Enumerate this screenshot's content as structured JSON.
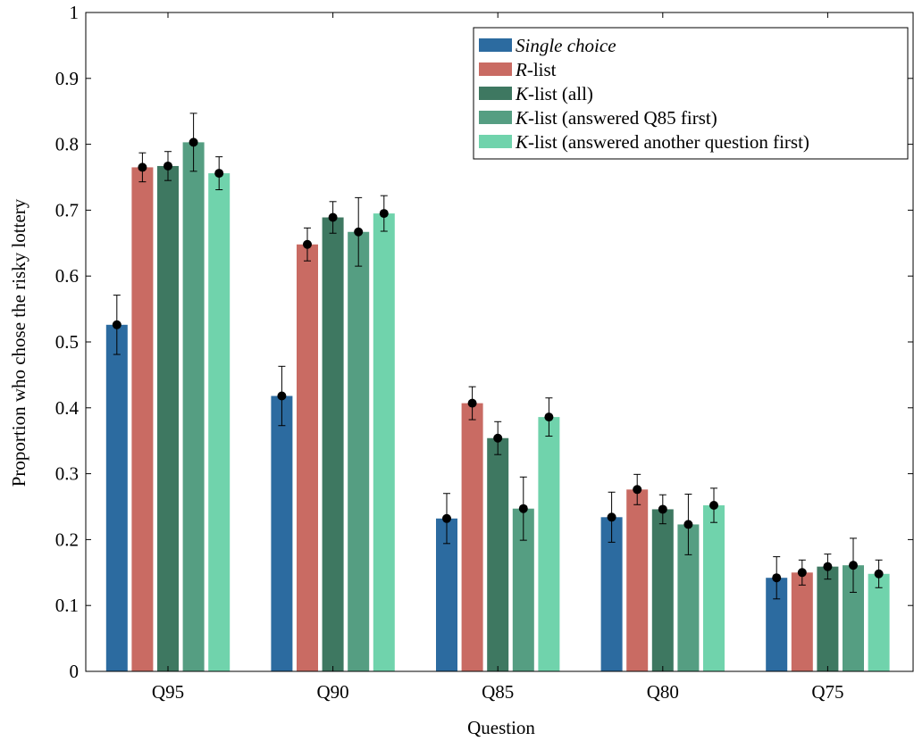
{
  "chart_data": {
    "type": "bar",
    "title": "",
    "xlabel": "Question",
    "ylabel": "Proportion who chose the risky lottery",
    "ylim": [
      0,
      1
    ],
    "yticks": [
      0,
      0.1,
      0.2,
      0.3,
      0.4,
      0.5,
      0.6,
      0.7,
      0.8,
      0.9,
      1
    ],
    "yticklabels": [
      "0",
      "0.1",
      "0.2",
      "0.3",
      "0.4",
      "0.5",
      "0.6",
      "0.7",
      "0.8",
      "0.9",
      "1"
    ],
    "categories": [
      "Q95",
      "Q90",
      "Q85",
      "Q80",
      "Q75"
    ],
    "grid": false,
    "legend_position": "top-right",
    "error_bars": true,
    "series": [
      {
        "name": "Single choice",
        "legend_italic": "Single choice",
        "legend_rest": "",
        "legend_italic_all": true,
        "color": "#2c6ba0",
        "values": [
          0.526,
          0.418,
          0.232,
          0.234,
          0.142
        ],
        "errors": [
          0.045,
          0.045,
          0.038,
          0.038,
          0.032
        ]
      },
      {
        "name": "R-list",
        "legend_italic": "R",
        "legend_rest": "-list",
        "legend_italic_all": false,
        "color": "#c96b63",
        "values": [
          0.765,
          0.648,
          0.407,
          0.276,
          0.15
        ],
        "errors": [
          0.022,
          0.025,
          0.025,
          0.023,
          0.019
        ]
      },
      {
        "name": "K-list (all)",
        "legend_italic": "K",
        "legend_rest": "-list (all)",
        "legend_italic_all": false,
        "color": "#3e7861",
        "values": [
          0.767,
          0.689,
          0.354,
          0.246,
          0.159
        ],
        "errors": [
          0.022,
          0.024,
          0.025,
          0.022,
          0.019
        ]
      },
      {
        "name": "K-list (answered Q85 first)",
        "legend_italic": "K",
        "legend_rest": "-list (answered Q85 first)",
        "legend_italic_all": false,
        "color": "#559e82",
        "values": [
          0.803,
          0.667,
          0.247,
          0.223,
          0.161
        ],
        "errors": [
          0.044,
          0.052,
          0.048,
          0.046,
          0.041
        ]
      },
      {
        "name": "K-list (answered another question first)",
        "legend_italic": "K",
        "legend_rest": "-list (answered another question first)",
        "legend_italic_all": false,
        "color": "#70d3ac",
        "values": [
          0.756,
          0.695,
          0.386,
          0.252,
          0.148
        ],
        "errors": [
          0.025,
          0.027,
          0.029,
          0.026,
          0.021
        ]
      }
    ]
  }
}
